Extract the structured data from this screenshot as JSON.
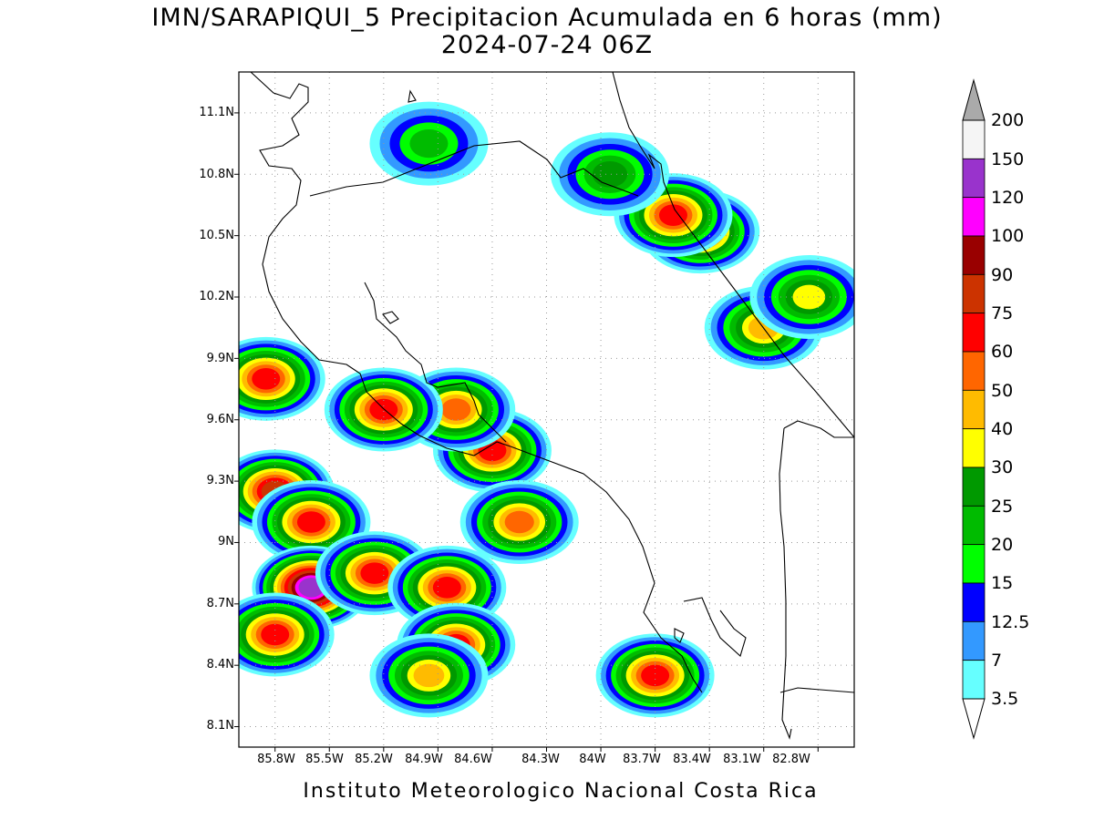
{
  "title": {
    "line1": "IMN/SARAPIQUI_5 Precipitacion Acumulada en 6 horas (mm)",
    "line2": "2024-07-24 06Z"
  },
  "footer": "Instituto Meteorologico Nacional Costa Rica",
  "axes": {
    "lat_ticks": [
      "11.1N",
      "10.8N",
      "10.5N",
      "10.2N",
      "9.9N",
      "9.6N",
      "9.3N",
      "9N",
      "8.7N",
      "8.4N",
      "8.1N"
    ],
    "lon_ticks": [
      "85.8W",
      "85.5W",
      "85.2W",
      "84.9W",
      "84.6W",
      "84.3W",
      "84W",
      "83.7W",
      "83.4W",
      "83.1W",
      "82.8W"
    ]
  },
  "legend": {
    "labels": [
      "200",
      "150",
      "120",
      "100",
      "90",
      "75",
      "60",
      "50",
      "40",
      "30",
      "25",
      "20",
      "15",
      "12.5",
      "7",
      "3.5"
    ],
    "colors": [
      "#f5f5f5",
      "#9933cc",
      "#ff00ff",
      "#990000",
      "#cc3300",
      "#ff0000",
      "#ff6600",
      "#ffbb00",
      "#ffff00",
      "#009900",
      "#00bb00",
      "#00ff00",
      "#0000ff",
      "#3399ff",
      "#66ffff"
    ],
    "top_triangle_color": "#aaaaaa",
    "bottom_triangle_color": "#ffffff"
  },
  "chart_data": {
    "type": "heatmap",
    "title": "IMN/SARAPIQUI_5 Precipitacion Acumulada en 6 horas (mm)",
    "subtitle": "2024-07-24 06Z",
    "xlim": [
      -86.0,
      -82.6
    ],
    "ylim": [
      8.0,
      11.3
    ],
    "units": "mm",
    "levels": [
      3.5,
      7,
      12.5,
      15,
      20,
      25,
      30,
      40,
      50,
      60,
      75,
      90,
      100,
      120,
      150,
      200
    ],
    "rain_cells": [
      {
        "lon": -83.45,
        "lat": 10.52,
        "peak_mm": 60
      },
      {
        "lon": -83.6,
        "lat": 10.6,
        "peak_mm": 60
      },
      {
        "lon": -83.95,
        "lat": 10.8,
        "peak_mm": 25
      },
      {
        "lon": -83.1,
        "lat": 10.05,
        "peak_mm": 40
      },
      {
        "lon": -82.85,
        "lat": 10.2,
        "peak_mm": 30
      },
      {
        "lon": -84.6,
        "lat": 9.45,
        "peak_mm": 60
      },
      {
        "lon": -84.8,
        "lat": 9.65,
        "peak_mm": 50
      },
      {
        "lon": -84.45,
        "lat": 9.1,
        "peak_mm": 50
      },
      {
        "lon": -85.2,
        "lat": 9.65,
        "peak_mm": 60
      },
      {
        "lon": -85.85,
        "lat": 9.8,
        "peak_mm": 60
      },
      {
        "lon": -85.8,
        "lat": 9.25,
        "peak_mm": 75
      },
      {
        "lon": -85.6,
        "lat": 9.1,
        "peak_mm": 60
      },
      {
        "lon": -85.6,
        "lat": 8.78,
        "peak_mm": 120
      },
      {
        "lon": -85.25,
        "lat": 8.85,
        "peak_mm": 60
      },
      {
        "lon": -84.85,
        "lat": 8.78,
        "peak_mm": 60
      },
      {
        "lon": -84.8,
        "lat": 8.5,
        "peak_mm": 60
      },
      {
        "lon": -85.8,
        "lat": 8.55,
        "peak_mm": 60
      },
      {
        "lon": -84.95,
        "lat": 8.35,
        "peak_mm": 40
      },
      {
        "lon": -83.7,
        "lat": 8.35,
        "peak_mm": 60
      },
      {
        "lon": -84.95,
        "lat": 10.95,
        "peak_mm": 20
      }
    ]
  }
}
